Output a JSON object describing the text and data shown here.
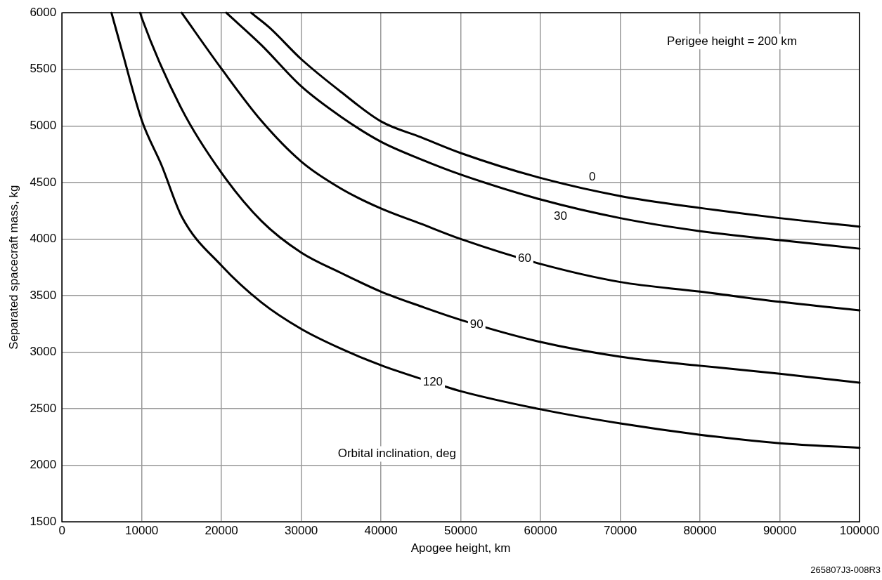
{
  "chart_data": {
    "type": "line",
    "xlabel": "Apogee height, km",
    "ylabel": "Separated spacecraft mass, kg",
    "annotations": [
      "Perigee height = 200 km",
      "Orbital inclination, deg",
      "265807J3-008R3"
    ],
    "xlim": [
      0,
      100000
    ],
    "xticks": [
      0,
      10000,
      20000,
      30000,
      40000,
      50000,
      60000,
      70000,
      80000,
      90000,
      100000
    ],
    "ylim": [
      1500,
      6000
    ],
    "yticks": [
      1500,
      2000,
      2500,
      3000,
      3500,
      4000,
      4500,
      5000,
      5500,
      6000
    ],
    "grid": true,
    "legend": false,
    "marker": "none",
    "line_style": "solid",
    "series": [
      {
        "name": "0",
        "color": "#000000",
        "x": [
          23700,
          26000,
          30000,
          35000,
          40000,
          45000,
          50000,
          60000,
          70000,
          80000,
          90000,
          100000
        ],
        "values": [
          6000,
          5870,
          5590,
          5300,
          5040,
          4900,
          4760,
          4540,
          4380,
          4275,
          4185,
          4110
        ]
      },
      {
        "name": "30",
        "color": "#000000",
        "x": [
          20600,
          25000,
          30000,
          35000,
          40000,
          45000,
          50000,
          60000,
          70000,
          80000,
          90000,
          100000
        ],
        "values": [
          6000,
          5715,
          5350,
          5080,
          4860,
          4705,
          4570,
          4350,
          4185,
          4070,
          3990,
          3915
        ]
      },
      {
        "name": "60",
        "color": "#000000",
        "x": [
          15000,
          20000,
          25000,
          30000,
          35000,
          40000,
          45000,
          50000,
          60000,
          70000,
          80000,
          90000,
          100000
        ],
        "values": [
          6000,
          5505,
          5045,
          4685,
          4445,
          4270,
          4135,
          4000,
          3780,
          3620,
          3535,
          3445,
          3370
        ]
      },
      {
        "name": "90",
        "color": "#000000",
        "x": [
          9800,
          10000,
          15000,
          20000,
          25000,
          30000,
          35000,
          40000,
          45000,
          50000,
          60000,
          70000,
          80000,
          90000,
          100000
        ],
        "values": [
          6000,
          5955,
          5150,
          4585,
          4160,
          3880,
          3700,
          3535,
          3405,
          3285,
          3090,
          2960,
          2880,
          2810,
          2730
        ]
      },
      {
        "name": "120",
        "color": "#000000",
        "x": [
          6200,
          7500,
          10000,
          12500,
          15000,
          20000,
          25000,
          30000,
          35000,
          40000,
          45000,
          50000,
          60000,
          70000,
          80000,
          90000,
          100000
        ],
        "values": [
          6000,
          5670,
          5050,
          4650,
          4200,
          3765,
          3440,
          3205,
          3030,
          2885,
          2765,
          2655,
          2495,
          2370,
          2270,
          2195,
          2155
        ]
      }
    ]
  }
}
